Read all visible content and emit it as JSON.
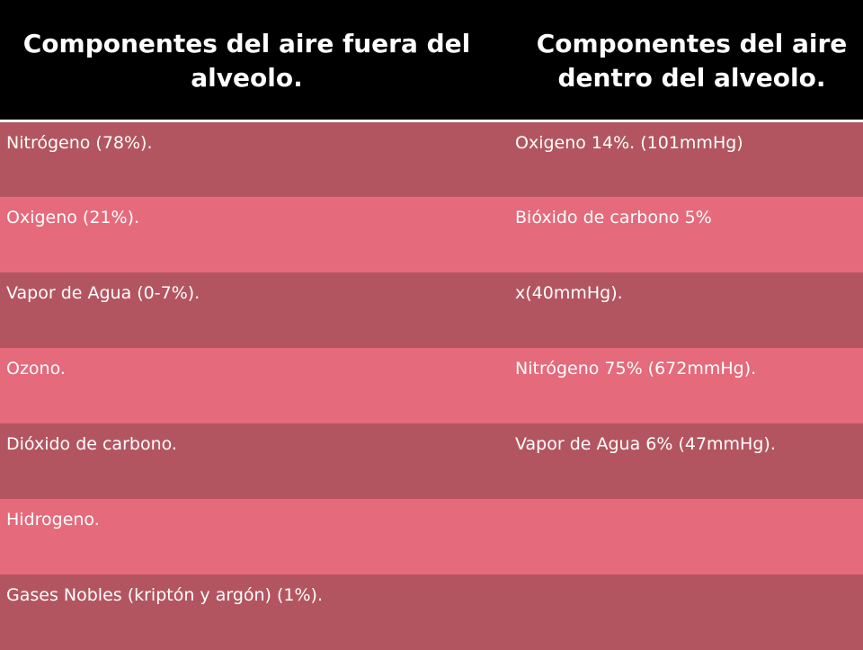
{
  "table": {
    "headers": [
      "Componentes del aire fuera del alveolo.",
      "Componentes del aire dentro del alveolo."
    ],
    "rows": [
      [
        "Nitrógeno (78%).",
        "Oxigeno 14%. (101mmHg)"
      ],
      [
        "Oxigeno (21%).",
        "Bióxido de carbono 5%"
      ],
      [
        "Vapor de Agua (0-7%).",
        "x(40mmHg)."
      ],
      [
        "Ozono.",
        "Nitrógeno 75% (672mmHg)."
      ],
      [
        "Dióxido de carbono.",
        "Vapor de Agua 6% (47mmHg)."
      ],
      [
        "Hidrogeno.",
        ""
      ],
      [
        "Gases Nobles (kriptón y argón) (1%).",
        ""
      ]
    ]
  },
  "colors": {
    "header_background": "#000000",
    "row_dark": "#b35560",
    "row_light": "#e56a7b",
    "text": "#ffffff"
  }
}
